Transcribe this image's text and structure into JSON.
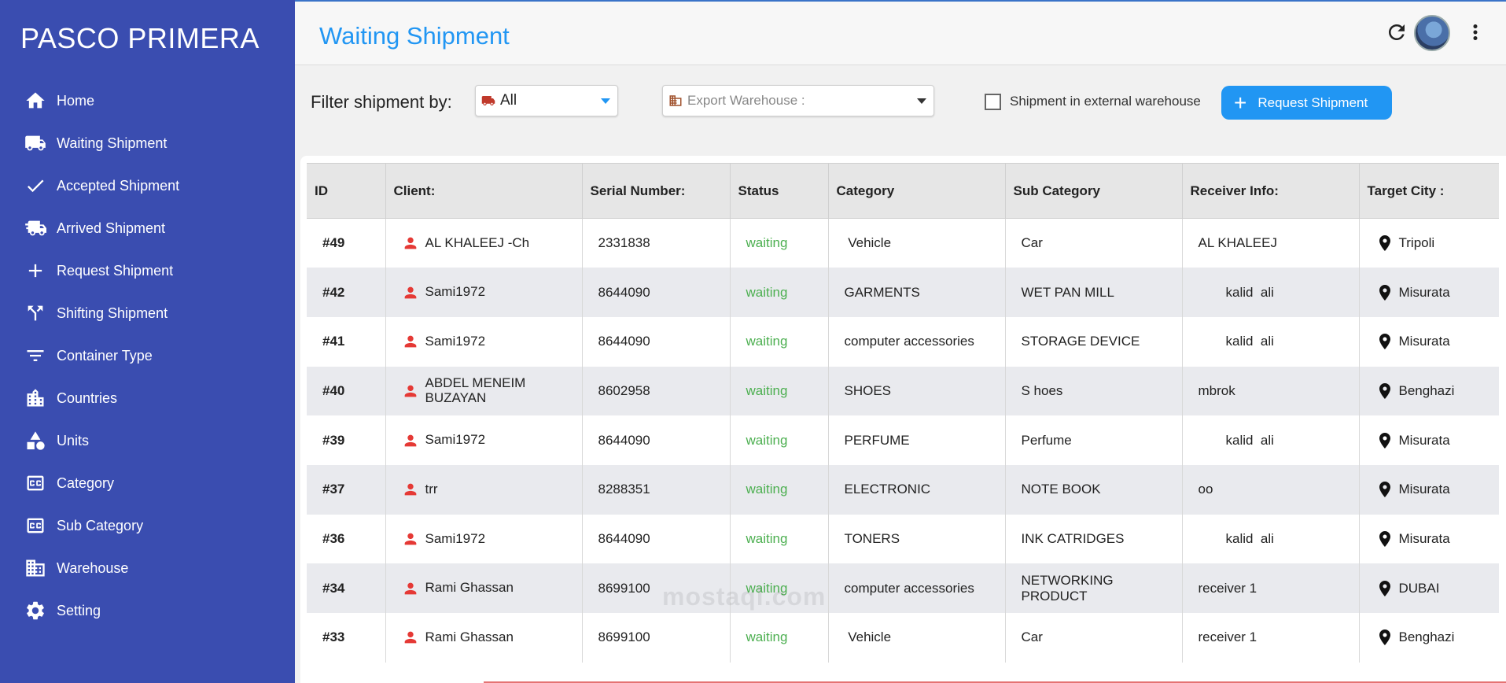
{
  "sidebar": {
    "brand": "PASCO PRIMERA",
    "items": [
      {
        "label": "Home",
        "icon": "home-icon"
      },
      {
        "label": "Waiting Shipment",
        "icon": "truck-icon"
      },
      {
        "label": "Accepted Shipment",
        "icon": "check-icon"
      },
      {
        "label": "Arrived Shipment",
        "icon": "fast-truck-icon"
      },
      {
        "label": "Request Shipment",
        "icon": "plus-icon"
      },
      {
        "label": "Shifting Shipment",
        "icon": "shift-icon"
      },
      {
        "label": "Container Type",
        "icon": "filter-icon"
      },
      {
        "label": "Countries",
        "icon": "buildings-icon"
      },
      {
        "label": "Units",
        "icon": "shapes-icon"
      },
      {
        "label": "Category",
        "icon": "cc-icon"
      },
      {
        "label": "Sub Category",
        "icon": "cc-icon"
      },
      {
        "label": "Warehouse",
        "icon": "warehouse-icon"
      },
      {
        "label": "Setting",
        "icon": "gear-icon"
      }
    ]
  },
  "header": {
    "title": "Waiting Shipment"
  },
  "filter": {
    "label": "Filter shipment by:",
    "type_value": "All",
    "warehouse_placeholder": "Export Warehouse :",
    "external_label": "Shipment in external warehouse",
    "request_button": "Request Shipment"
  },
  "table": {
    "headers": [
      "ID",
      "Client:",
      "Serial Number:",
      "Status",
      "Category",
      "Sub Category",
      "Receiver Info:",
      "Target City :"
    ],
    "rows": [
      {
        "id": "#49",
        "client": "AL KHALEEJ -Ch",
        "serial": "2331838",
        "status": "waiting",
        "category": " Vehicle",
        "sub": "Car",
        "receiver": "AL KHALEEJ",
        "receiver_indent": false,
        "city": "Tripoli"
      },
      {
        "id": "#42",
        "client": "Sami1972",
        "serial": "8644090",
        "status": "waiting",
        "category": "GARMENTS",
        "sub": "WET PAN MILL",
        "receiver": "kalid  ali",
        "receiver_indent": true,
        "city": "Misurata"
      },
      {
        "id": "#41",
        "client": "Sami1972",
        "serial": "8644090",
        "status": "waiting",
        "category": "computer accessories",
        "sub": "STORAGE DEVICE",
        "receiver": "kalid  ali",
        "receiver_indent": true,
        "city": "Misurata"
      },
      {
        "id": "#40",
        "client": "ABDEL MENEIM BUZAYAN",
        "serial": "8602958",
        "status": "waiting",
        "category": "SHOES",
        "sub": "S hoes",
        "receiver": "mbrok",
        "receiver_indent": false,
        "city": "Benghazi"
      },
      {
        "id": "#39",
        "client": "Sami1972",
        "serial": "8644090",
        "status": "waiting",
        "category": "PERFUME",
        "sub": "Perfume",
        "receiver": "kalid  ali",
        "receiver_indent": true,
        "city": "Misurata"
      },
      {
        "id": "#37",
        "client": "trr",
        "serial": "8288351",
        "status": "waiting",
        "category": "ELECTRONIC",
        "sub": "NOTE BOOK",
        "receiver": "oo",
        "receiver_indent": false,
        "city": "Misurata"
      },
      {
        "id": "#36",
        "client": "Sami1972",
        "serial": "8644090",
        "status": "waiting",
        "category": "TONERS",
        "sub": "INK CATRIDGES",
        "receiver": "kalid  ali",
        "receiver_indent": true,
        "city": "Misurata"
      },
      {
        "id": "#34",
        "client": "Rami Ghassan",
        "serial": "8699100",
        "status": "waiting",
        "category": "computer accessories",
        "sub": "NETWORKING PRODUCT",
        "receiver": "receiver 1",
        "receiver_indent": false,
        "city": "DUBAI"
      },
      {
        "id": "#33",
        "client": "Rami Ghassan",
        "serial": "8699100",
        "status": "waiting",
        "category": " Vehicle",
        "sub": "Car",
        "receiver": "receiver 1",
        "receiver_indent": false,
        "city": "Benghazi"
      }
    ]
  },
  "watermark": "mostaql.com",
  "colors": {
    "sidebar": "#3a4db0",
    "accent": "#2196f3",
    "status": "#4caf50",
    "client_icon": "#e53935"
  }
}
